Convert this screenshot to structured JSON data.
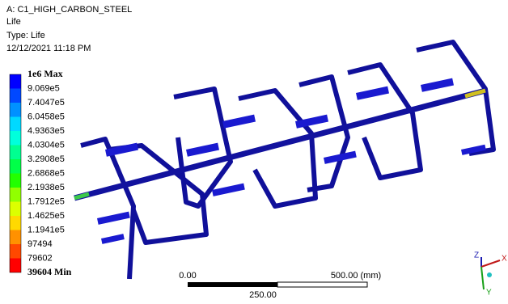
{
  "header": {
    "model": "A: C1_HIGH_CARBON_STEEL",
    "result": "Life",
    "type": "Type: Life",
    "date": "12/12/2021 11:18 PM"
  },
  "legend": {
    "items": [
      {
        "label": "1e6 Max",
        "color": "#0000ff"
      },
      {
        "label": "9.069e5",
        "color": "#0048ff"
      },
      {
        "label": "7.4047e5",
        "color": "#0091ff"
      },
      {
        "label": "6.0458e5",
        "color": "#00d9ff"
      },
      {
        "label": "4.9363e5",
        "color": "#00ffdc"
      },
      {
        "label": "4.0304e5",
        "color": "#00ff91"
      },
      {
        "label": "3.2908e5",
        "color": "#00ff48"
      },
      {
        "label": "2.6868e5",
        "color": "#22ff00"
      },
      {
        "label": "2.1938e5",
        "color": "#91ff00"
      },
      {
        "label": "1.7912e5",
        "color": "#dcff00"
      },
      {
        "label": "1.4625e5",
        "color": "#ffd900"
      },
      {
        "label": "1.1941e5",
        "color": "#ff9100"
      },
      {
        "label": "97494",
        "color": "#ff4800"
      },
      {
        "label": "79602",
        "color": "#ff0000"
      },
      {
        "label": "39604 Min",
        "color": null
      }
    ]
  },
  "scale_bar": {
    "start": "0.00",
    "end": "500.00 (mm)",
    "mid": "250.00"
  },
  "triad": {
    "z": "Z",
    "x": "X",
    "y": "Y"
  }
}
